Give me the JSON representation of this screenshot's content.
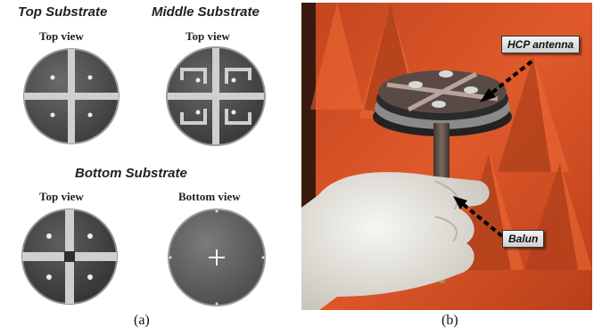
{
  "panel_a": {
    "top_substrate": {
      "title": "Top Substrate",
      "view": "Top view"
    },
    "middle_substrate": {
      "title": "Middle Substrate",
      "view": "Top view"
    },
    "bottom_substrate": {
      "title": "Bottom Substrate",
      "top_view": "Top view",
      "bottom_view": "Bottom view"
    },
    "caption": "(a)"
  },
  "panel_b": {
    "callout_antenna": "HCP antenna",
    "callout_balun": "Balun",
    "caption": "(b)"
  },
  "colors": {
    "anechoic_foam": "#e0592b",
    "substrate_dark": "#4a4a4a",
    "copper_strip": "#c9c9c9",
    "glove": "#ece9e2"
  }
}
